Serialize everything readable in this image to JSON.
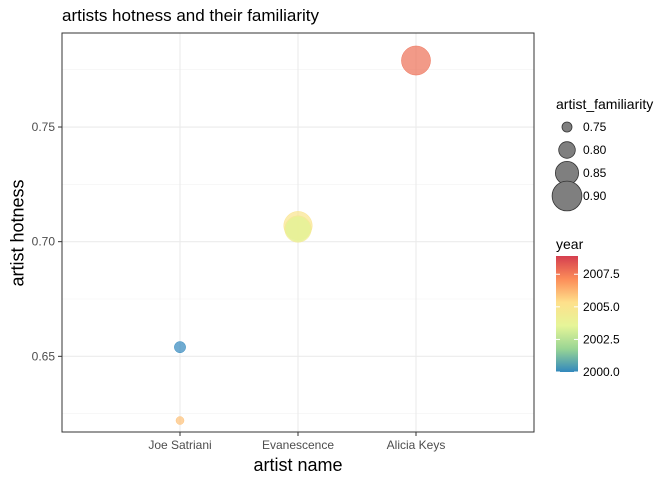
{
  "chart_data": {
    "type": "scatter",
    "title": "artists hotness and their familiarity",
    "xlabel": "artist name",
    "ylabel": "artist hotness",
    "categories": [
      "Joe Satriani",
      "Evanescence",
      "Alicia Keys"
    ],
    "ylim": [
      0.617,
      0.791
    ],
    "yticks": [
      0.65,
      0.7,
      0.75
    ],
    "ytick_labels": [
      "0.65",
      "0.70",
      "0.75"
    ],
    "grid": true,
    "legend_position": "right",
    "points": [
      {
        "x": "Joe Satriani",
        "y": 0.654,
        "familiarity": 0.76,
        "year": 2000.0
      },
      {
        "x": "Joe Satriani",
        "y": 0.622,
        "familiarity": 0.735,
        "year": 2006.0
      },
      {
        "x": "Evanescence",
        "y": 0.707,
        "familiarity": 0.89,
        "year": 2005.0
      },
      {
        "x": "Evanescence",
        "y": 0.7055,
        "familiarity": 0.875,
        "year": 2004.5
      },
      {
        "x": "Evanescence",
        "y": 0.7055,
        "familiarity": 0.86,
        "year": 2003.5
      },
      {
        "x": "Alicia Keys",
        "y": 0.779,
        "familiarity": 0.895,
        "year": 2007.8
      }
    ],
    "size_legend": {
      "title": "artist_familiarity",
      "values": [
        0.75,
        0.8,
        0.85,
        0.9
      ],
      "labels": [
        "0.75",
        "0.80",
        "0.85",
        "0.90"
      ]
    },
    "color_legend": {
      "title": "year",
      "range": [
        2000.0,
        2008.9
      ],
      "ticks": [
        2000.0,
        2002.5,
        2005.0,
        2007.5
      ],
      "labels": [
        "2000.0",
        "2002.5",
        "2005.0",
        "2007.5"
      ],
      "palette": [
        "#3288bd",
        "#99d594",
        "#e6f598",
        "#fee08b",
        "#fc8d59",
        "#d53e4f"
      ]
    }
  }
}
